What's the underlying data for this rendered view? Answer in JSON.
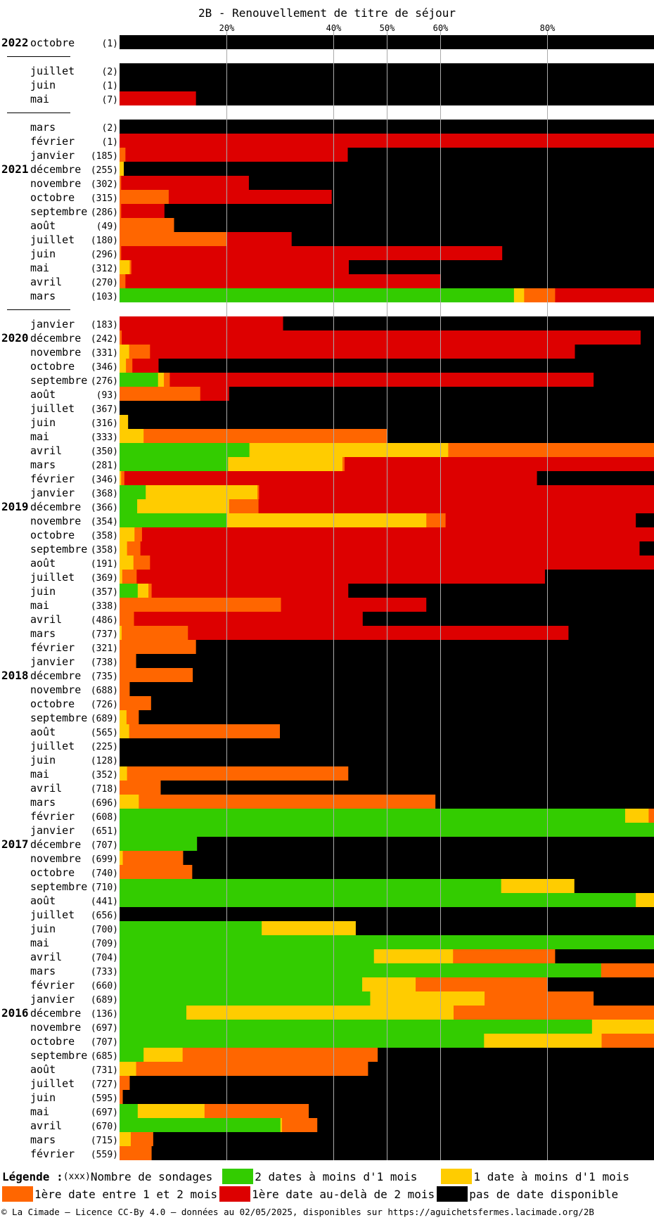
{
  "chart_data": {
    "type": "bar",
    "orientation": "horizontal",
    "stacked": true,
    "title": "2B - Renouvellement de titre de séjour",
    "xticks": [
      "20%",
      "40%",
      "50%",
      "60%",
      "80%"
    ],
    "xtick_values": [
      20,
      40,
      50,
      60,
      80
    ],
    "xlim": [
      0,
      100
    ],
    "grid": true,
    "colors": {
      "green": "#33cc00",
      "yellow": "#ffcc00",
      "orange": "#ff6600",
      "red": "#dd0000",
      "black": "#000000"
    },
    "series_order": [
      "green",
      "yellow",
      "orange",
      "red",
      "black"
    ],
    "legend": {
      "title": "Légende :",
      "count_note": "(xxx)",
      "count_label": "Nombre de sondages",
      "green": "2 dates à moins d'1 mois",
      "yellow": "1 date à moins d'1 mois",
      "orange": "1ère date entre 1 et 2 mois",
      "red": "1ère date au-delà de 2 mois",
      "black": "pas de date disponible"
    },
    "rows": [
      {
        "year": "2022",
        "month": "octobre",
        "count": "(1)",
        "values": [
          0,
          0,
          0,
          0,
          100
        ]
      },
      {
        "gap": true
      },
      {
        "month": "juillet",
        "count": "(2)",
        "values": [
          0,
          0,
          0,
          0,
          100
        ]
      },
      {
        "month": "juin",
        "count": "(1)",
        "values": [
          0,
          0,
          0,
          0,
          100
        ]
      },
      {
        "month": "mai",
        "count": "(7)",
        "values": [
          0,
          0,
          0,
          14.3,
          85.7
        ]
      },
      {
        "gap": true
      },
      {
        "month": "mars",
        "count": "(2)",
        "values": [
          0,
          0,
          0,
          0,
          100
        ]
      },
      {
        "month": "février",
        "count": "(1)",
        "values": [
          0,
          0,
          0,
          100,
          0
        ]
      },
      {
        "month": "janvier",
        "count": "(185)",
        "values": [
          0,
          0,
          1.1,
          41.6,
          57.3
        ]
      },
      {
        "year": "2021",
        "month": "décembre",
        "count": "(255)",
        "values": [
          0,
          0.8,
          0,
          0,
          99.2
        ]
      },
      {
        "month": "novembre",
        "count": "(302)",
        "values": [
          0,
          0,
          0.3,
          23.9,
          75.8
        ]
      },
      {
        "month": "octobre",
        "count": "(315)",
        "values": [
          0,
          0,
          9.2,
          30.5,
          60.3
        ]
      },
      {
        "month": "septembre",
        "count": "(286)",
        "values": [
          0,
          0,
          0.3,
          8.1,
          91.6
        ]
      },
      {
        "month": "août",
        "count": "(49)",
        "values": [
          0,
          0,
          10.2,
          0,
          89.8
        ]
      },
      {
        "month": "juillet",
        "count": "(180)",
        "values": [
          0,
          0,
          20,
          12.2,
          67.8
        ]
      },
      {
        "month": "juin",
        "count": "(296)",
        "values": [
          0,
          0,
          0.3,
          71.3,
          28.4
        ]
      },
      {
        "month": "mai",
        "count": "(312)",
        "values": [
          0,
          1.9,
          0.3,
          40.7,
          57.1
        ]
      },
      {
        "month": "avril",
        "count": "(270)",
        "values": [
          0,
          0,
          1.1,
          58.9,
          40
        ]
      },
      {
        "month": "mars",
        "count": "(103)",
        "values": [
          73.8,
          1.9,
          5.8,
          18.5,
          0
        ]
      },
      {
        "gap": true
      },
      {
        "month": "janvier",
        "count": "(183)",
        "values": [
          0,
          0,
          0,
          30.6,
          69.4
        ]
      },
      {
        "year": "2020",
        "month": "décembre",
        "count": "(242)",
        "values": [
          0,
          0,
          0.4,
          97.1,
          2.5
        ]
      },
      {
        "month": "novembre",
        "count": "(331)",
        "values": [
          0,
          1.8,
          3.9,
          79.5,
          14.8
        ]
      },
      {
        "month": "octobre",
        "count": "(346)",
        "values": [
          0,
          1.2,
          1.2,
          4.9,
          92.7
        ]
      },
      {
        "month": "septembre",
        "count": "(276)",
        "values": [
          7.2,
          1.1,
          1.1,
          79.3,
          11.3
        ]
      },
      {
        "month": "août",
        "count": "(93)",
        "values": [
          0,
          0,
          15.1,
          5.4,
          79.5
        ]
      },
      {
        "month": "juillet",
        "count": "(367)",
        "values": [
          0,
          0,
          0,
          0,
          100
        ]
      },
      {
        "month": "juin",
        "count": "(316)",
        "values": [
          0,
          1.6,
          0,
          0,
          98.4
        ]
      },
      {
        "month": "mai",
        "count": "(333)",
        "values": [
          0,
          4.5,
          45.6,
          0,
          49.9
        ]
      },
      {
        "month": "avril",
        "count": "(350)",
        "values": [
          24.3,
          37.2,
          38.5,
          0,
          0
        ]
      },
      {
        "month": "mars",
        "count": "(281)",
        "values": [
          20.3,
          21.4,
          0.4,
          57.9,
          0
        ]
      },
      {
        "month": "février",
        "count": "(346)",
        "values": [
          0,
          0.3,
          0.6,
          77.2,
          21.9
        ]
      },
      {
        "month": "janvier",
        "count": "(368)",
        "values": [
          4.9,
          20.9,
          0.3,
          74,
          0
        ]
      },
      {
        "year": "2019",
        "month": "décembre",
        "count": "(366)",
        "values": [
          3.3,
          17.2,
          5.5,
          74,
          0
        ]
      },
      {
        "month": "novembre",
        "count": "(354)",
        "values": [
          20.1,
          37.3,
          3.6,
          35.6,
          3.4
        ]
      },
      {
        "month": "octobre",
        "count": "(358)",
        "values": [
          0,
          2.8,
          1.4,
          95.8,
          0
        ]
      },
      {
        "month": "septembre",
        "count": "(358)",
        "values": [
          0,
          1.4,
          2.5,
          93.4,
          2.7
        ]
      },
      {
        "month": "août",
        "count": "(191)",
        "values": [
          0,
          2.6,
          3.1,
          94.3,
          0
        ]
      },
      {
        "month": "juillet",
        "count": "(369)",
        "values": [
          0,
          0.5,
          2.7,
          76.4,
          20.4
        ]
      },
      {
        "month": "juin",
        "count": "(357)",
        "values": [
          3.4,
          2,
          0.6,
          36.8,
          57.2
        ]
      },
      {
        "month": "mai",
        "count": "(338)",
        "values": [
          0,
          0,
          30.2,
          27.2,
          42.6
        ]
      },
      {
        "month": "avril",
        "count": "(486)",
        "values": [
          0,
          0,
          2.7,
          42.8,
          54.5
        ]
      },
      {
        "month": "mars",
        "count": "(737)",
        "values": [
          0,
          0.4,
          12.4,
          71.2,
          16
        ]
      },
      {
        "month": "février",
        "count": "(321)",
        "values": [
          0,
          0,
          14.3,
          0,
          85.7
        ]
      },
      {
        "month": "janvier",
        "count": "(738)",
        "values": [
          0,
          0,
          3.1,
          0,
          96.9
        ]
      },
      {
        "year": "2018",
        "month": "décembre",
        "count": "(735)",
        "values": [
          0,
          0,
          13.7,
          0,
          86.3
        ]
      },
      {
        "month": "novembre",
        "count": "(688)",
        "values": [
          0,
          0,
          1.9,
          0,
          98.1
        ]
      },
      {
        "month": "octobre",
        "count": "(726)",
        "values": [
          0,
          0,
          5.9,
          0,
          94.1
        ]
      },
      {
        "month": "septembre",
        "count": "(689)",
        "values": [
          0,
          1.3,
          2.3,
          0,
          96.4
        ]
      },
      {
        "month": "août",
        "count": "(565)",
        "values": [
          0,
          1.8,
          28.2,
          0,
          70
        ]
      },
      {
        "month": "juillet",
        "count": "(225)",
        "values": [
          0,
          0,
          0,
          0,
          100
        ]
      },
      {
        "month": "juin",
        "count": "(128)",
        "values": [
          0,
          0,
          0,
          0,
          100
        ]
      },
      {
        "month": "mai",
        "count": "(352)",
        "values": [
          0,
          1.4,
          41.4,
          0,
          57.2
        ]
      },
      {
        "month": "avril",
        "count": "(718)",
        "values": [
          0,
          0,
          7.7,
          0,
          92.3
        ]
      },
      {
        "month": "mars",
        "count": "(696)",
        "values": [
          0,
          3.6,
          55.5,
          0,
          40.9
        ]
      },
      {
        "month": "février",
        "count": "(608)",
        "values": [
          94.6,
          4.4,
          1,
          0,
          0
        ]
      },
      {
        "month": "janvier",
        "count": "(651)",
        "values": [
          100,
          0,
          0,
          0,
          0
        ]
      },
      {
        "year": "2017",
        "month": "décembre",
        "count": "(707)",
        "values": [
          14.5,
          0,
          0,
          0,
          85.5
        ]
      },
      {
        "month": "novembre",
        "count": "(699)",
        "values": [
          0,
          0.6,
          11.3,
          0,
          88.1
        ]
      },
      {
        "month": "octobre",
        "count": "(740)",
        "values": [
          0,
          0,
          13.6,
          0,
          86.4
        ]
      },
      {
        "month": "septembre",
        "count": "(710)",
        "values": [
          71.4,
          13.7,
          0,
          0,
          14.9
        ]
      },
      {
        "month": "août",
        "count": "(441)",
        "values": [
          96.6,
          3.4,
          0,
          0,
          0
        ]
      },
      {
        "month": "juillet",
        "count": "(656)",
        "values": [
          0,
          0,
          0,
          0,
          100
        ]
      },
      {
        "month": "juin",
        "count": "(700)",
        "values": [
          26.6,
          17.6,
          0,
          0,
          55.8
        ]
      },
      {
        "month": "mai",
        "count": "(709)",
        "values": [
          100,
          0,
          0,
          0,
          0
        ]
      },
      {
        "month": "avril",
        "count": "(704)",
        "values": [
          47.6,
          14.8,
          19.1,
          0,
          18.5
        ]
      },
      {
        "month": "mars",
        "count": "(733)",
        "values": [
          90.1,
          0,
          9.9,
          0,
          0
        ]
      },
      {
        "month": "février",
        "count": "(660)",
        "values": [
          45.4,
          10,
          24.7,
          0,
          19.9
        ]
      },
      {
        "month": "janvier",
        "count": "(689)",
        "values": [
          46.9,
          21.4,
          20.4,
          0,
          11.3
        ]
      },
      {
        "year": "2016",
        "month": "décembre",
        "count": "(136)",
        "values": [
          12.5,
          50,
          37.5,
          0,
          0
        ]
      },
      {
        "month": "novembre",
        "count": "(697)",
        "values": [
          88.4,
          11.6,
          0,
          0,
          0
        ]
      },
      {
        "month": "octobre",
        "count": "(707)",
        "values": [
          68.2,
          22,
          9.8,
          0,
          0
        ]
      },
      {
        "month": "septembre",
        "count": "(685)",
        "values": [
          4.5,
          7.3,
          36.5,
          0,
          51.7
        ]
      },
      {
        "month": "août",
        "count": "(731)",
        "values": [
          0,
          3.1,
          43.4,
          0,
          53.5
        ]
      },
      {
        "month": "juillet",
        "count": "(727)",
        "values": [
          0,
          0,
          1.9,
          0,
          98.1
        ]
      },
      {
        "month": "juin",
        "count": "(595)",
        "values": [
          0,
          0,
          0.6,
          0,
          99.4
        ]
      },
      {
        "month": "mai",
        "count": "(697)",
        "values": [
          3.4,
          12.5,
          19.5,
          0,
          64.6
        ]
      },
      {
        "month": "avril",
        "count": "(670)",
        "values": [
          30.1,
          0.3,
          6.6,
          0,
          63
        ]
      },
      {
        "month": "mars",
        "count": "(715)",
        "values": [
          0,
          2.1,
          4.2,
          0,
          93.7
        ]
      },
      {
        "month": "février",
        "count": "(559)",
        "values": [
          0,
          0,
          6,
          0,
          94
        ]
      }
    ]
  },
  "footer": "© La Cimade — Licence CC-By 4.0 — données au 02/05/2025, disponibles sur https://aguichetsfermes.lacimade.org/2B"
}
